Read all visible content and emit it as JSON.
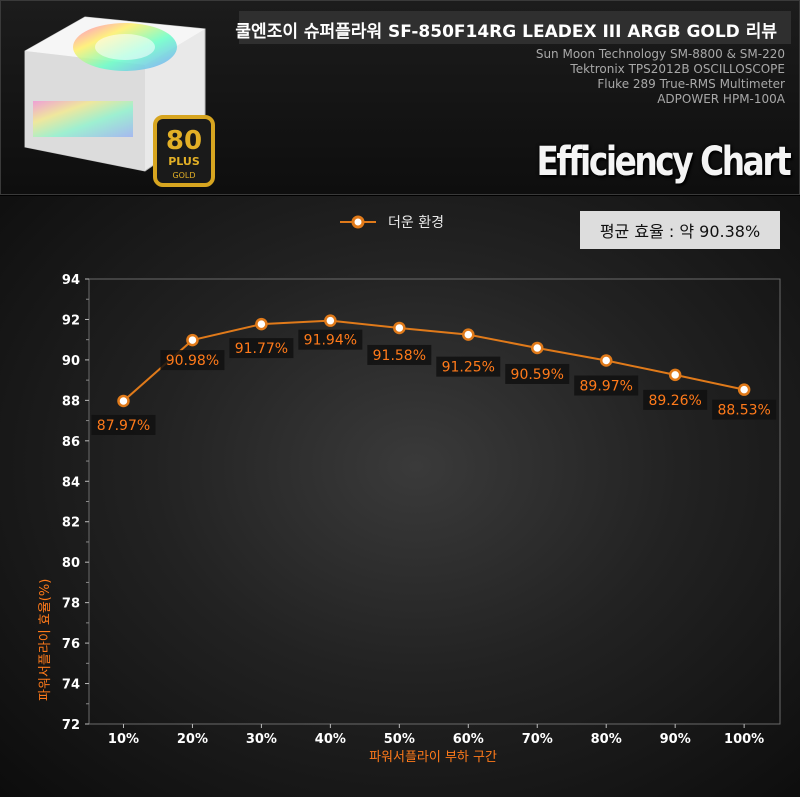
{
  "header": {
    "title": "쿨엔조이  슈퍼플라워 SF-850F14RG LEADEX III ARGB GOLD  리뷰",
    "equipment": [
      "Sun Moon Technology SM-8800 & SM-220",
      "Tektronix TPS2012B OSCILLOSCOPE",
      "Fluke 289 True-RMS Multimeter",
      "ADPOWER HPM-100A"
    ],
    "chart_title": "Efficiency Chart",
    "badge": {
      "top": "80",
      "middle": "PLUS",
      "bottom": "GOLD"
    }
  },
  "average_label": "평균 효율 : 약 90.38%",
  "colors": {
    "series": "#e07a1a",
    "label_text": "#ff7a1a",
    "label_bg": "#111111",
    "axis_text": "#ffffff"
  },
  "chart_data": {
    "type": "line",
    "categories": [
      "10%",
      "20%",
      "30%",
      "40%",
      "50%",
      "60%",
      "70%",
      "80%",
      "90%",
      "100%"
    ],
    "series": [
      {
        "name": "더운 환경",
        "values": [
          87.97,
          90.98,
          91.77,
          91.94,
          91.58,
          91.25,
          90.59,
          89.97,
          89.26,
          88.53
        ]
      }
    ],
    "data_labels": [
      "87.97%",
      "90.98%",
      "91.77%",
      "91.94%",
      "91.58%",
      "91.25%",
      "90.59%",
      "89.97%",
      "89.26%",
      "88.53%"
    ],
    "ylim": [
      72,
      94
    ],
    "yticks": [
      72,
      74,
      76,
      78,
      80,
      82,
      84,
      86,
      88,
      90,
      92,
      94
    ],
    "xlabel": "파워서플라이 부하 구간",
    "ylabel": "파워서플라이 효율(%)",
    "legend": "top-center"
  }
}
